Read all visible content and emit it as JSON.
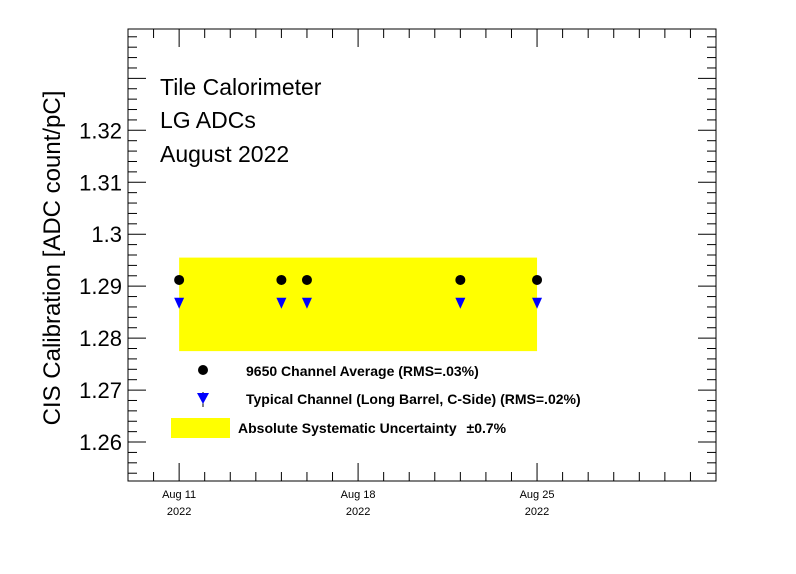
{
  "chart_data": {
    "type": "scatter",
    "title": "",
    "ylabel": "CIS Calibration [ADC count/pC]",
    "xlabel": "",
    "ylim": [
      1.2525,
      1.3395
    ],
    "xlim": [
      "2022-08-09",
      "2022-09-01"
    ],
    "x_ticks": [
      {
        "date": "2022-08-11",
        "line1": "Aug 11",
        "line2": "2022"
      },
      {
        "date": "2022-08-18",
        "line1": "Aug 18",
        "line2": "2022"
      },
      {
        "date": "2022-08-25",
        "line1": "Aug 25",
        "line2": "2022"
      }
    ],
    "y_ticks": [
      1.26,
      1.27,
      1.28,
      1.29,
      1.3,
      1.31,
      1.32
    ],
    "y_tick_labels": [
      "1.26",
      "1.27",
      "1.28",
      "1.29",
      "1.3",
      "1.31",
      "1.32"
    ],
    "annotations": [
      "Tile Calorimeter",
      "LG ADCs",
      "August 2022"
    ],
    "series": [
      {
        "name": "9650 Channel Average (RMS=.03%)",
        "marker": "circle",
        "color": "#000000",
        "x": [
          "2022-08-11",
          "2022-08-15",
          "2022-08-16",
          "2022-08-22",
          "2022-08-25"
        ],
        "y": [
          1.2912,
          1.2912,
          1.2912,
          1.2912,
          1.2912
        ]
      },
      {
        "name": "Typical Channel (Long Barrel, C-Side) (RMS=.02%)",
        "marker": "triangle-down",
        "color": "#0000ff",
        "x": [
          "2022-08-11",
          "2022-08-15",
          "2022-08-16",
          "2022-08-22",
          "2022-08-25"
        ],
        "y": [
          1.2868,
          1.2868,
          1.2868,
          1.2868,
          1.2868
        ]
      }
    ],
    "band": {
      "name": "Absolute Systematic Uncertainty",
      "name_suffix": "±0.7%",
      "color": "#ffff00",
      "x_range": [
        "2022-08-11",
        "2022-08-25"
      ],
      "y_range": [
        1.2775,
        1.2955
      ]
    },
    "legend_placement": "bottom-center",
    "grid": false
  }
}
